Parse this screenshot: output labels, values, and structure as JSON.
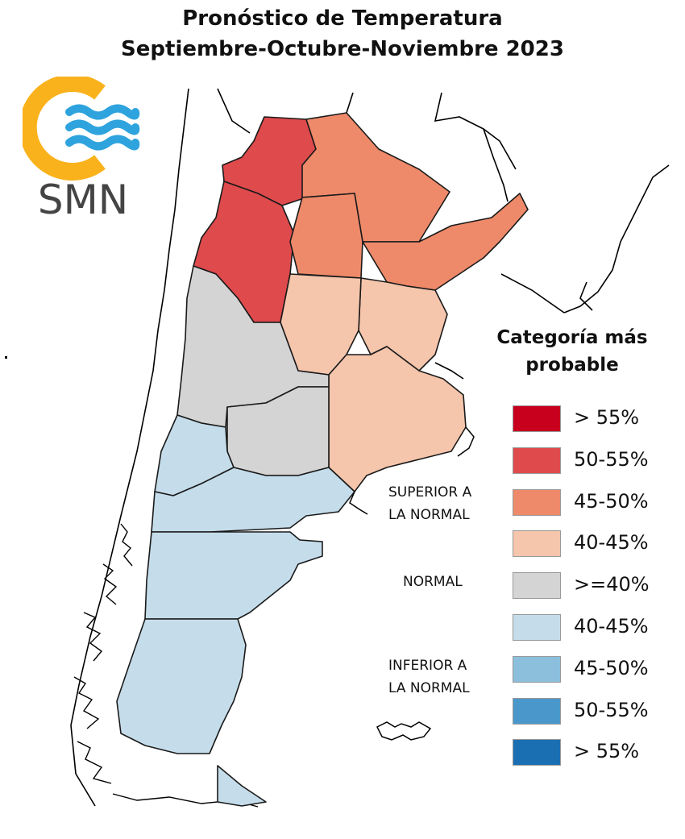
{
  "header": {
    "title_line1": "Pronóstico de Temperatura",
    "title_line2": "Septiembre-Octubre-Noviembre 2023"
  },
  "logo": {
    "text": "SMN",
    "colors": {
      "sun": "#F9B21B",
      "waves": "#2EA3DD",
      "text": "#444444"
    }
  },
  "legend": {
    "title_line1": "Categoría más",
    "title_line2": "probable",
    "groups": {
      "above": [
        "SUPERIOR A",
        "LA NORMAL"
      ],
      "normal": [
        "NORMAL"
      ],
      "below": [
        "INFERIOR A",
        "LA NORMAL"
      ]
    },
    "items": [
      {
        "label": "> 55%",
        "color": "#C8001E",
        "category": "above"
      },
      {
        "label": "50-55%",
        "color": "#DF4A4C",
        "category": "above"
      },
      {
        "label": "45-50%",
        "color": "#EE8A6A",
        "category": "above"
      },
      {
        "label": "40-45%",
        "color": "#F5C5AC",
        "category": "above"
      },
      {
        "label": ">=40%",
        "color": "#D4D4D4",
        "category": "normal"
      },
      {
        "label": "40-45%",
        "color": "#C5DDEB",
        "category": "below"
      },
      {
        "label": "45-50%",
        "color": "#8BBFDC",
        "category": "below"
      },
      {
        "label": "50-55%",
        "color": "#4A98CB",
        "category": "below"
      },
      {
        "label": "> 55%",
        "color": "#1A6FB3",
        "category": "below"
      }
    ]
  }
}
